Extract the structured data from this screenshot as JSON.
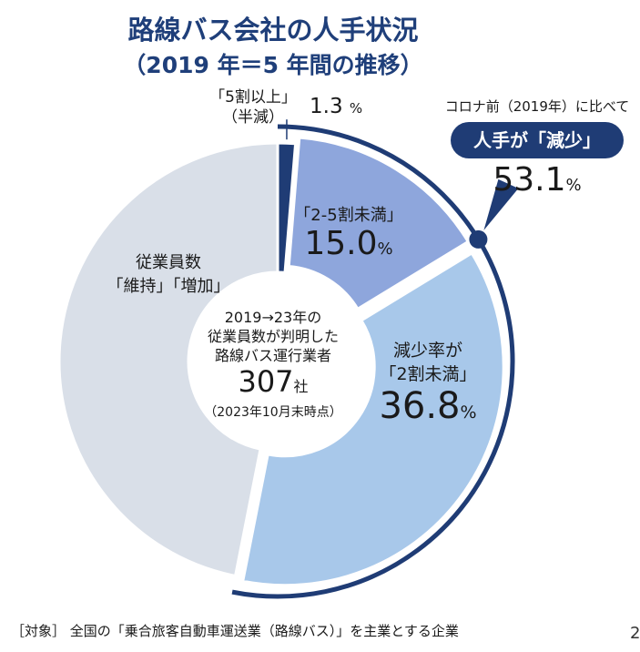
{
  "title": "路線バス会社の人手状況",
  "subtitle": "（2019 年＝5 年間の推移）",
  "chart_data": {
    "type": "pie",
    "style": "donut",
    "slices": [
      {
        "label_line1": "「5割以上」",
        "label_line2": "（半減）",
        "value": 1.3,
        "value_text": "1.3",
        "unit": "%",
        "color": "#1f3c75"
      },
      {
        "label_line1": "「2-5割未満」",
        "label_line2": "",
        "value": 15.0,
        "value_text": "15.0",
        "unit": "%",
        "color": "#8ea6dc"
      },
      {
        "label_line1": "減少率が",
        "label_line2": "「2割未満」",
        "value": 36.8,
        "value_text": "36.8",
        "unit": "%",
        "color": "#a8c8ea"
      },
      {
        "label_line1": "従業員数",
        "label_line2": "「維持」「増加」",
        "value": 46.9,
        "value_text": "",
        "unit": "",
        "color": "#d9dfe8"
      }
    ],
    "center": {
      "line1": "2019→23年の",
      "line2": "従業員数が判明した",
      "line3": "路線バス運行業者",
      "count": "307",
      "count_unit": "社",
      "note": "（2023年10月末時点）"
    },
    "callout": {
      "caption": "コロナ前（2019年）に比べて",
      "badge": "人手が「減少」",
      "value_text": "53.1",
      "unit": "%"
    }
  },
  "footnote": "［対象］ 全国の「乗合旅客自動車運送業（路線バス）」を主業とする企業",
  "page_number": "2"
}
